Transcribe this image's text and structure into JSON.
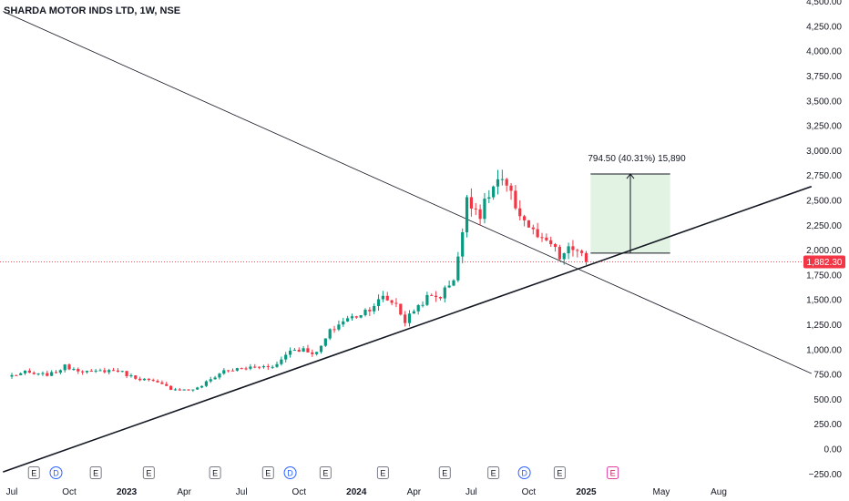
{
  "chart_data": {
    "type": "candlestick",
    "title": "SHARDA MOTOR INDS LTD, 1W, NSE",
    "last_price_label": "1,882.30",
    "last_price": 1882.3,
    "y_ticks": [
      -250,
      0,
      250,
      500,
      750,
      1000,
      1250,
      1500,
      1750,
      2000,
      2250,
      2500,
      2750,
      3000,
      3250,
      3500,
      3750,
      4000,
      4250,
      4500
    ],
    "y_tick_labels": [
      "−250.00",
      "0.00",
      "250.00",
      "500.00",
      "750.00",
      "1,000.00",
      "1,250.00",
      "1,500.00",
      "1,750.00",
      "2,000.00",
      "2,250.00",
      "2,500.00",
      "2,750.00",
      "3,000.00",
      "3,250.00",
      "3,500.00",
      "3,750.00",
      "4,000.00",
      "4,250.00",
      "4,500.00"
    ],
    "x_ticks": [
      {
        "label": "Jul",
        "bold": false,
        "w": 0
      },
      {
        "label": "Oct",
        "bold": false,
        "w": 13
      },
      {
        "label": "2023",
        "bold": true,
        "w": 26
      },
      {
        "label": "Apr",
        "bold": false,
        "w": 39
      },
      {
        "label": "Jul",
        "bold": false,
        "w": 52
      },
      {
        "label": "Oct",
        "bold": false,
        "w": 65
      },
      {
        "label": "2024",
        "bold": true,
        "w": 78
      },
      {
        "label": "Apr",
        "bold": false,
        "w": 91
      },
      {
        "label": "Jul",
        "bold": false,
        "w": 104
      },
      {
        "label": "Oct",
        "bold": false,
        "w": 117
      },
      {
        "label": "2025",
        "bold": true,
        "w": 130
      },
      {
        "label": "May",
        "bold": false,
        "w": 147
      },
      {
        "label": "Aug",
        "bold": false,
        "w": 160
      }
    ],
    "week_anchor": {
      "label": "Jul",
      "week": 0
    },
    "events": [
      {
        "type": "E",
        "w": 5
      },
      {
        "type": "D",
        "w": 10
      },
      {
        "type": "E",
        "w": 19
      },
      {
        "type": "E",
        "w": 31
      },
      {
        "type": "E",
        "w": 46
      },
      {
        "type": "E",
        "w": 58
      },
      {
        "type": "D",
        "w": 63
      },
      {
        "type": "E",
        "w": 71
      },
      {
        "type": "E",
        "w": 84
      },
      {
        "type": "E",
        "w": 98
      },
      {
        "type": "E",
        "w": 109
      },
      {
        "type": "D",
        "w": 116
      },
      {
        "type": "E",
        "w": 124
      },
      {
        "type": "E",
        "w": 136
      }
    ],
    "measure": {
      "label": "794.50 (40.31%) 15,890",
      "from_week": 131,
      "to_week": 149,
      "from_price": 1970,
      "to_price": 2765
    },
    "trendlines": [
      {
        "name": "support",
        "p1": {
          "w": -2,
          "price": -230
        },
        "p2": {
          "w": 181,
          "price": 2640
        },
        "style": "thick"
      },
      {
        "name": "resistance",
        "p1": {
          "w": -2,
          "price": 4400
        },
        "p2": {
          "w": 181,
          "price": 760
        },
        "style": "thin"
      }
    ],
    "anchors": [
      [
        0,
        740
      ],
      [
        3,
        770
      ],
      [
        6,
        745
      ],
      [
        9,
        755
      ],
      [
        12,
        830
      ],
      [
        15,
        800
      ],
      [
        18,
        770
      ],
      [
        21,
        790
      ],
      [
        24,
        790
      ],
      [
        27,
        730
      ],
      [
        30,
        700
      ],
      [
        33,
        660
      ],
      [
        36,
        610
      ],
      [
        39,
        595
      ],
      [
        42,
        610
      ],
      [
        45,
        700
      ],
      [
        48,
        790
      ],
      [
        51,
        800
      ],
      [
        54,
        820
      ],
      [
        57,
        830
      ],
      [
        60,
        850
      ],
      [
        63,
        1000
      ],
      [
        66,
        1000
      ],
      [
        69,
        960
      ],
      [
        72,
        1180
      ],
      [
        75,
        1290
      ],
      [
        78,
        1340
      ],
      [
        81,
        1420
      ],
      [
        84,
        1520
      ],
      [
        87,
        1460
      ],
      [
        89,
        1280
      ],
      [
        91,
        1400
      ],
      [
        94,
        1520
      ],
      [
        97,
        1540
      ],
      [
        100,
        1720
      ],
      [
        101,
        1940
      ],
      [
        102,
        2150
      ],
      [
        103,
        2550
      ],
      [
        104,
        2480
      ],
      [
        106,
        2360
      ],
      [
        108,
        2560
      ],
      [
        110,
        2700
      ],
      [
        112,
        2620
      ],
      [
        114,
        2450
      ],
      [
        116,
        2300
      ],
      [
        118,
        2180
      ],
      [
        120,
        2080
      ],
      [
        122,
        2060
      ],
      [
        124,
        1920
      ],
      [
        126,
        2000
      ],
      [
        128,
        2010
      ],
      [
        130,
        1882.3
      ]
    ],
    "up_color": "#089981",
    "down_color": "#f23645",
    "grid": false,
    "legend": "none"
  }
}
